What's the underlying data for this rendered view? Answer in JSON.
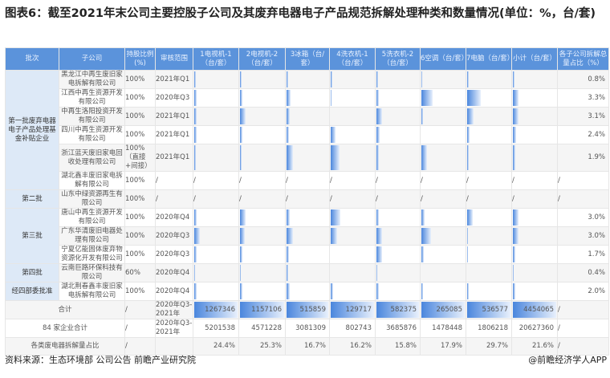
{
  "title": "图表6：截至2021年末公司主要控股子公司及其废弃电器电子产品规范拆解处理种类和数量情况(单位：%，台/套)",
  "headers": [
    "批次",
    "子公司",
    "持股比例(%)",
    "审核范围",
    "1电视机-1（台/套）",
    "2电视机-2（台/套）",
    "3冰箱（台/套）",
    "4洗衣机-1（台/套）",
    "5洗衣机-2（台/套）",
    "6空调（台/套）",
    "7电脑（台/套）",
    "小计（台/套）",
    "各子公司拆解总量占比（%）"
  ],
  "batches": {
    "b1": "第一批废弃电器电子产品处理基金补贴企业",
    "b2": "第二批",
    "b3": "第三批",
    "b4": "第四批",
    "b5": "经四部委批准"
  },
  "rows": [
    {
      "company": "黑龙江中再生废旧家电拆解有限公司",
      "share": "100%",
      "scope": "2021年Q1",
      "bars": [
        0.03,
        0.03,
        0.03,
        0.03,
        0.03,
        0.02,
        0.03,
        0.03
      ],
      "pct": "0.8%"
    },
    {
      "company": "江西中再生资源开发有限公司",
      "share": "100%",
      "scope": "2020年Q3",
      "bars": [
        0.06,
        0.05,
        0.1,
        0.02,
        0.05,
        0.25,
        0.3,
        0.12
      ],
      "pct": "3.3%"
    },
    {
      "company": "中再生洛阳投资开发有限公司",
      "share": "100%",
      "scope": "2021年Q1",
      "bars": [
        0.05,
        0.12,
        0.08,
        0,
        0.12,
        0.04,
        0.15,
        0.12
      ],
      "pct": "3.1%"
    },
    {
      "company": "四川中再生资源开发有限公司",
      "share": "100%",
      "scope": "2021年Q1",
      "bars": [
        0.05,
        0.05,
        0.05,
        0.1,
        0.08,
        0,
        0.05,
        0.08
      ],
      "pct": "2.4%"
    },
    {
      "company": "浙江蓝天废旧家电回收处理有限公司",
      "share": "100%（直接+间接）",
      "scope": "2021年Q1",
      "bars": [
        0.03,
        0.03,
        0.15,
        0.2,
        0.05,
        0.12,
        0.04,
        0.06
      ],
      "pct": "1.9%"
    },
    {
      "company": "湖北鑫丰废旧家电拆解有限公司",
      "share": "100%",
      "scope": "/",
      "slash": "/",
      "pct": "/"
    },
    {
      "company": "山东中绿资源再生有限公司",
      "share": "100%",
      "scope": "/",
      "slash": "/",
      "pct": "/"
    },
    {
      "company": "唐山中再生资源开发有限公司",
      "share": "100%",
      "scope": "2020年Q4",
      "bars": [
        0.06,
        0.12,
        0.08,
        0.22,
        0.06,
        0.08,
        0.12,
        0.12
      ],
      "pct": "3.0%"
    },
    {
      "company": "广东华清废旧电器处理有限公司",
      "share": "100%",
      "scope": "2020年Q3",
      "bars": [
        0.12,
        0.1,
        0.15,
        0.15,
        0.12,
        0.22,
        0.02,
        0.12
      ],
      "pct": "3.0%"
    },
    {
      "company": "宁夏亿能固体废弃物资源化开发有限公司",
      "share": "100%",
      "scope": "2020年Q3",
      "bars": [
        0.05,
        0.05,
        0.06,
        0,
        0.12,
        0.06,
        0.02,
        0.06
      ],
      "pct": "1.7%"
    },
    {
      "company": "云南巨路环保科技有限公司",
      "share": "60%",
      "scope": "2020年Q4",
      "bars": [
        0.02,
        0.02,
        0.03,
        0,
        0.02,
        0,
        0,
        0.02
      ],
      "pct": "0.4%"
    },
    {
      "company": "湖北荆春鑫丰废旧家电拆解有限公司",
      "share": "100%",
      "scope": "2020年Q4",
      "bars": [
        0.05,
        0.06,
        0.08,
        0.05,
        0.05,
        0.04,
        0.04,
        0.06
      ],
      "pct": "2.0%"
    }
  ],
  "total": {
    "label": "合计",
    "share": "/",
    "scope": "2020年Q3-2021年",
    "values": [
      "1267346",
      "1157106",
      "515859",
      "129717",
      "582375",
      "265085",
      "536577",
      "4454065"
    ],
    "pct": "/"
  },
  "all84": {
    "label": "84 家企业合计",
    "share": "/",
    "scope": "2020年Q3-2021年",
    "values": [
      "5201538",
      "4571228",
      "3081309",
      "802743",
      "3685876",
      "1478448",
      "1806218",
      "20627360"
    ],
    "pct": "/"
  },
  "ratio": {
    "label": "各类废电器拆解量占比",
    "share": "/",
    "values": [
      "24.4%",
      "25.3%",
      "16.7%",
      "16.2%",
      "15.8%",
      "17.9%",
      "29.7%",
      "21.6%"
    ],
    "pct": "/"
  },
  "source": "资料来源：生态环境部 公司公告 前瞻产业研究院",
  "credit": "@前瞻经济学人APP",
  "colors": {
    "header": "#5b93db",
    "batch": "#dde9f7",
    "bar": "#4a86dd"
  }
}
